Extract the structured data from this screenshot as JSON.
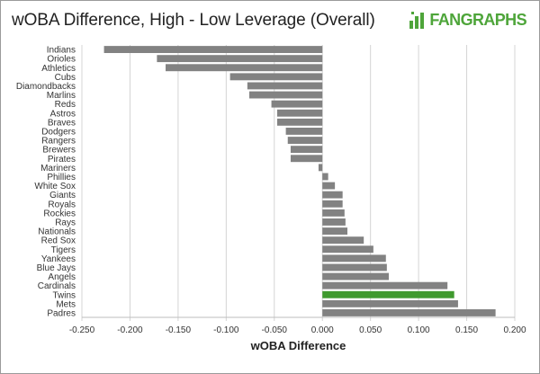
{
  "chart_data": {
    "type": "bar",
    "orientation": "horizontal",
    "title": "wOBA Difference, High - Low Leverage (Overall)",
    "xlabel": "wOBA Difference",
    "ylabel": "",
    "xlim": [
      -0.25,
      0.2
    ],
    "xticks": [
      "-0.250",
      "-0.200",
      "-0.150",
      "-0.100",
      "-0.050",
      "0.000",
      "0.050",
      "0.100",
      "0.150",
      "0.200"
    ],
    "grid": "vertical",
    "categories": [
      "Indians",
      "Orioles",
      "Athletics",
      "Cubs",
      "Diamondbacks",
      "Marlins",
      "Reds",
      "Astros",
      "Braves",
      "Dodgers",
      "Rangers",
      "Brewers",
      "Pirates",
      "Mariners",
      "Phillies",
      "White Sox",
      "Giants",
      "Royals",
      "Rockies",
      "Rays",
      "Nationals",
      "Red Sox",
      "Tigers",
      "Yankees",
      "Blue Jays",
      "Angels",
      "Cardinals",
      "Twins",
      "Mets",
      "Padres"
    ],
    "values": [
      -0.227,
      -0.172,
      -0.163,
      -0.096,
      -0.078,
      -0.076,
      -0.053,
      -0.047,
      -0.047,
      -0.038,
      -0.036,
      -0.033,
      -0.033,
      -0.004,
      0.006,
      0.013,
      0.021,
      0.021,
      0.023,
      0.024,
      0.026,
      0.043,
      0.053,
      0.066,
      0.067,
      0.069,
      0.13,
      0.137,
      0.141,
      0.18
    ],
    "bar_color": "#828282",
    "highlight": {
      "category": "Twins",
      "color": "#3f9a2e"
    }
  },
  "brand": {
    "logo_text": "FANGRAPHS",
    "logo_color": "#4ea53a"
  }
}
